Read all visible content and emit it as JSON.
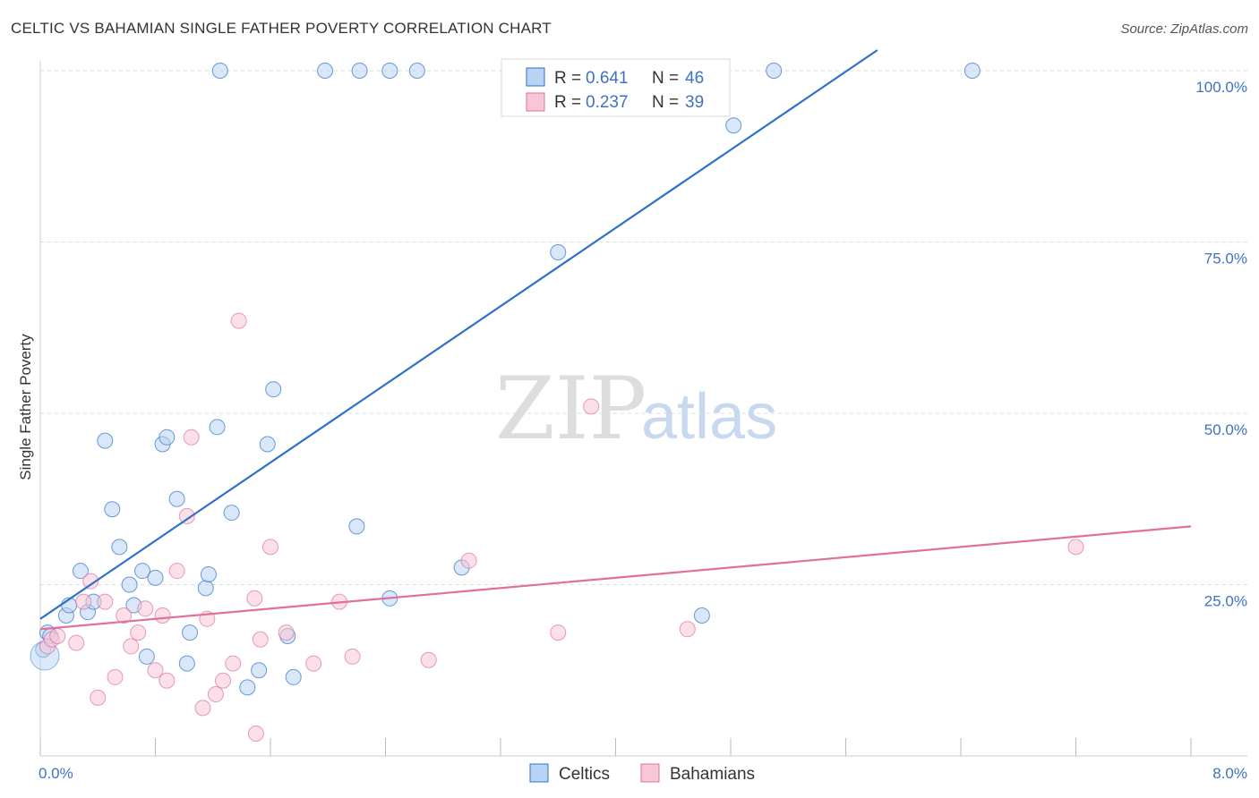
{
  "title": "CELTIC VS BAHAMIAN SINGLE FATHER POVERTY CORRELATION CHART",
  "source": "Source: ZipAtlas.com",
  "watermark": {
    "zip": "ZIP",
    "atlas": "atlas"
  },
  "colors": {
    "celtics": "#2e72c8",
    "celtics_fill": "#b9d3f3",
    "bahamians": "#e0709a",
    "bahamians_fill": "#f7c7d8",
    "tick": "#3d72c4"
  },
  "legend": {
    "rows": [
      {
        "r_label": "R = ",
        "r_value": "0.641",
        "n_label": "N = ",
        "n_value": "46"
      },
      {
        "r_label": "R = ",
        "r_value": "0.237",
        "n_label": "N = ",
        "n_value": "39"
      }
    ]
  },
  "chart_data": {
    "type": "scatter",
    "title": "CELTIC VS BAHAMIAN SINGLE FATHER POVERTY CORRELATION CHART",
    "xlabel": "",
    "ylabel": "Single Father Poverty",
    "xlim": [
      0,
      8
    ],
    "ylim": [
      0,
      105
    ],
    "x_tick_labels": [
      "0.0%",
      "8.0%"
    ],
    "y_ticks": [
      25,
      50,
      75,
      100
    ],
    "y_tick_labels": [
      "25.0%",
      "50.0%",
      "75.0%",
      "100.0%"
    ],
    "grid": true,
    "legend_position": "top-center",
    "series": [
      {
        "name": "Celtics",
        "r": 0.641,
        "n": 46,
        "trend": [
          [
            0,
            20.0
          ],
          [
            5.82,
            103.0
          ]
        ],
        "points": [
          [
            0.02,
            15.5
          ],
          [
            0.05,
            18.0
          ],
          [
            0.07,
            17.5
          ],
          [
            0.18,
            20.5
          ],
          [
            0.2,
            22.0
          ],
          [
            0.28,
            27.0
          ],
          [
            0.33,
            21.0
          ],
          [
            0.37,
            22.5
          ],
          [
            0.45,
            46.0
          ],
          [
            0.5,
            36.0
          ],
          [
            0.55,
            30.5
          ],
          [
            0.62,
            25.0
          ],
          [
            0.65,
            22.0
          ],
          [
            0.71,
            27.0
          ],
          [
            0.74,
            14.5
          ],
          [
            0.8,
            26.0
          ],
          [
            0.85,
            45.5
          ],
          [
            0.88,
            46.5
          ],
          [
            0.95,
            37.5
          ],
          [
            1.02,
            13.5
          ],
          [
            1.04,
            18.0
          ],
          [
            1.15,
            24.5
          ],
          [
            1.17,
            26.5
          ],
          [
            1.23,
            48.0
          ],
          [
            1.33,
            35.5
          ],
          [
            1.44,
            10.0
          ],
          [
            1.52,
            12.5
          ],
          [
            1.58,
            45.5
          ],
          [
            1.62,
            53.5
          ],
          [
            1.72,
            17.5
          ],
          [
            1.76,
            11.5
          ],
          [
            2.2,
            33.5
          ],
          [
            2.43,
            23.0
          ],
          [
            2.93,
            27.5
          ],
          [
            3.6,
            73.5
          ],
          [
            4.6,
            20.5
          ],
          [
            4.82,
            92.0
          ],
          [
            1.25,
            105
          ],
          [
            1.98,
            105
          ],
          [
            2.22,
            105
          ],
          [
            2.43,
            105
          ],
          [
            2.62,
            105
          ],
          [
            3.3,
            105
          ],
          [
            4.2,
            105
          ],
          [
            5.1,
            105
          ],
          [
            6.48,
            105
          ]
        ]
      },
      {
        "name": "Bahamians",
        "r": 0.237,
        "n": 39,
        "trend": [
          [
            0,
            18.5
          ],
          [
            8.0,
            33.5
          ]
        ],
        "points": [
          [
            0.05,
            16.0
          ],
          [
            0.08,
            17.0
          ],
          [
            0.12,
            17.5
          ],
          [
            0.25,
            16.5
          ],
          [
            0.3,
            22.5
          ],
          [
            0.35,
            25.5
          ],
          [
            0.45,
            22.5
          ],
          [
            0.52,
            11.5
          ],
          [
            0.58,
            20.5
          ],
          [
            0.63,
            16.0
          ],
          [
            0.68,
            18.0
          ],
          [
            0.73,
            21.5
          ],
          [
            0.8,
            12.5
          ],
          [
            0.85,
            20.5
          ],
          [
            0.88,
            11.0
          ],
          [
            0.95,
            27.0
          ],
          [
            1.02,
            35.0
          ],
          [
            1.05,
            46.5
          ],
          [
            1.13,
            7.0
          ],
          [
            1.16,
            20.0
          ],
          [
            1.22,
            9.0
          ],
          [
            1.27,
            11.0
          ],
          [
            1.34,
            13.5
          ],
          [
            1.38,
            63.5
          ],
          [
            1.49,
            23.0
          ],
          [
            1.53,
            17.0
          ],
          [
            1.6,
            30.5
          ],
          [
            1.71,
            18.0
          ],
          [
            1.9,
            13.5
          ],
          [
            2.08,
            22.5
          ],
          [
            2.17,
            14.5
          ],
          [
            2.7,
            14.0
          ],
          [
            2.98,
            28.5
          ],
          [
            3.6,
            18.0
          ],
          [
            3.83,
            51.0
          ],
          [
            4.5,
            18.5
          ],
          [
            7.2,
            30.5
          ],
          [
            0.4,
            8.5
          ],
          [
            1.5,
            0.0
          ]
        ]
      }
    ]
  },
  "bottom_legend": [
    "Celtics",
    "Bahamians"
  ]
}
